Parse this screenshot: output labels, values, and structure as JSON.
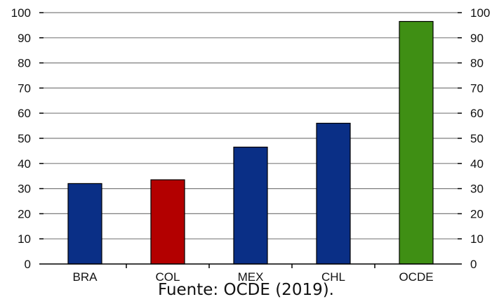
{
  "chart_data": {
    "type": "bar",
    "categories": [
      "BRA",
      "COL",
      "MEX",
      "CHL",
      "OCDE"
    ],
    "values": [
      32,
      33.5,
      46.5,
      56,
      96.5
    ],
    "bar_colors": [
      "#0a2f86",
      "#b30000",
      "#0a2f86",
      "#0a2f86",
      "#3f8f14"
    ],
    "ylim": [
      0,
      100
    ],
    "yticks": [
      0,
      10,
      20,
      30,
      40,
      50,
      60,
      70,
      80,
      90,
      100
    ],
    "grid": true,
    "dual_y_axis": true,
    "title": "",
    "xlabel": "",
    "ylabel": ""
  },
  "source_note": "Fuente: OCDE (2019)."
}
